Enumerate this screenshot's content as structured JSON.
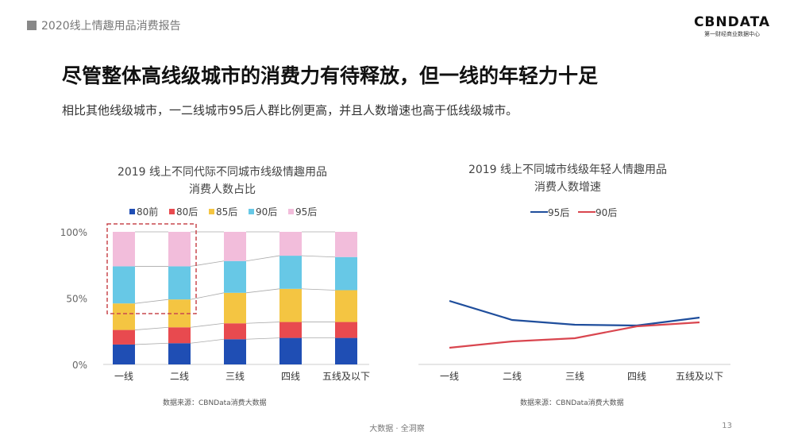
{
  "header": {
    "report": "2020线上情趣用品消费报告"
  },
  "logo": {
    "brand": "CBNDATA",
    "tagline": "第一财经商业数据中心"
  },
  "title": "尽管整体高线级城市的消费力有待释放，但一线的年轻力十足",
  "subtitle": "相比其他线级城市，一二线城市95后人群比例更高，并且人数增速也高于低线级城市。",
  "footer": {
    "text": "大数据 · 全洞察",
    "page": "13"
  },
  "chart_data": [
    {
      "type": "bar",
      "stacked": true,
      "title_line1": "2019 线上不同代际不同城市线级情趣用品",
      "title_line2": "消费人数占比",
      "categories": [
        "一线",
        "二线",
        "三线",
        "四线",
        "五线及以下"
      ],
      "yticks": [
        "0%",
        "50%",
        "100%"
      ],
      "ylim": [
        0,
        100
      ],
      "legend_position": "top",
      "highlight": "dashed box around 一线, 二线 upper segments",
      "series": [
        {
          "name": "80前",
          "color": "#1f4eb4",
          "values": [
            15,
            16,
            19,
            20,
            20
          ]
        },
        {
          "name": "80后",
          "color": "#e84a4f",
          "values": [
            11,
            12,
            12,
            12,
            12
          ]
        },
        {
          "name": "85后",
          "color": "#f4c542",
          "values": [
            20,
            21,
            23,
            25,
            24
          ]
        },
        {
          "name": "90后",
          "color": "#67c8e6",
          "values": [
            28,
            25,
            24,
            25,
            25
          ]
        },
        {
          "name": "95后",
          "color": "#f2bddb",
          "values": [
            26,
            26,
            22,
            18,
            19
          ]
        }
      ],
      "source": "数据来源：CBNData消费大数据"
    },
    {
      "type": "line",
      "title_line1": "2019 线上不同城市线级年轻人情趣用品",
      "title_line2": "消费人数增速",
      "categories": [
        "一线",
        "二线",
        "三线",
        "四线",
        "五线及以下"
      ],
      "legend_position": "top",
      "ylim": [
        0,
        100
      ],
      "series": [
        {
          "name": "95后",
          "color": "#1f4e9c",
          "values": [
            80,
            56,
            50,
            49,
            59
          ]
        },
        {
          "name": "90后",
          "color": "#d9464f",
          "values": [
            21,
            29,
            33,
            48,
            53
          ]
        }
      ],
      "source": "数据来源：CBNData消费大数据"
    }
  ]
}
